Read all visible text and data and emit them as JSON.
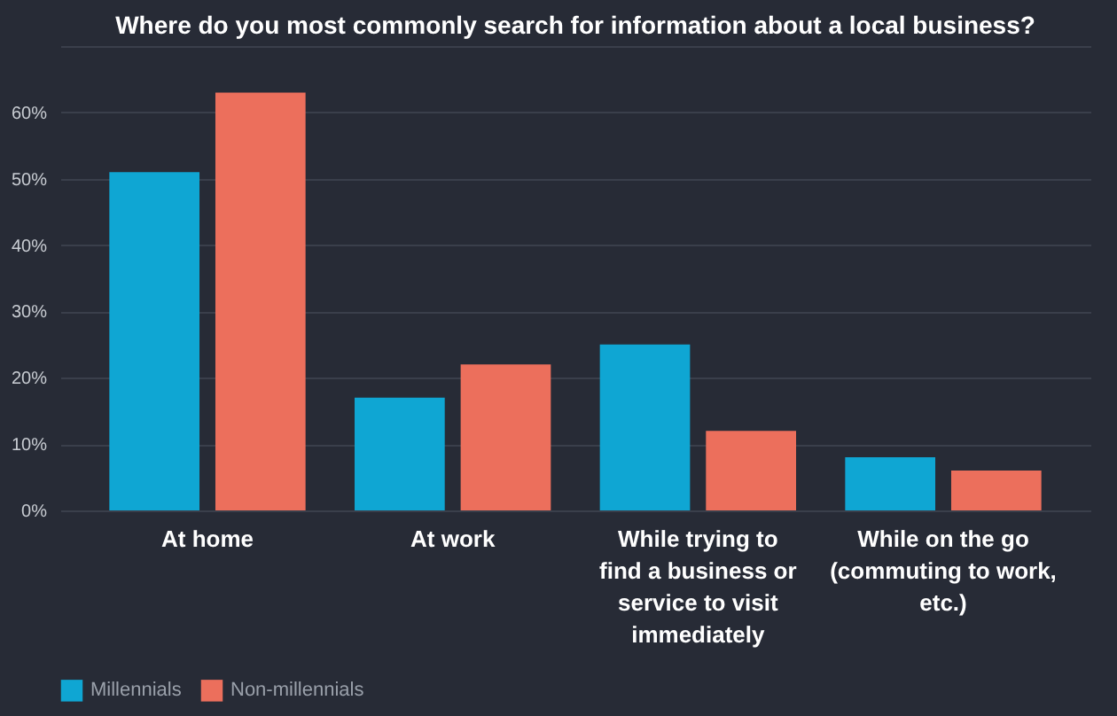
{
  "chart_data": {
    "type": "bar",
    "title": "Where do you most commonly search for information about a local business?",
    "categories": [
      "At home",
      "At work",
      "While trying to find a business or service to visit immediately",
      "While on the go (commuting to work, etc.)"
    ],
    "series": [
      {
        "name": "Millennials",
        "color": "#0fa6d3",
        "values": [
          51,
          17,
          25,
          8
        ]
      },
      {
        "name": "Non-millennials",
        "color": "#ec6f5c",
        "values": [
          63,
          22,
          12,
          6
        ]
      }
    ],
    "ylim": [
      0,
      70
    ],
    "yticks": [
      {
        "value": 0,
        "label": "0%"
      },
      {
        "value": 10,
        "label": "10%"
      },
      {
        "value": 20,
        "label": "20%"
      },
      {
        "value": 30,
        "label": "30%"
      },
      {
        "value": 40,
        "label": "40%"
      },
      {
        "value": 50,
        "label": "50%"
      },
      {
        "value": 60,
        "label": "60%"
      },
      {
        "value": 70,
        "label": null
      }
    ],
    "grid": "y",
    "legend": "bottom"
  }
}
